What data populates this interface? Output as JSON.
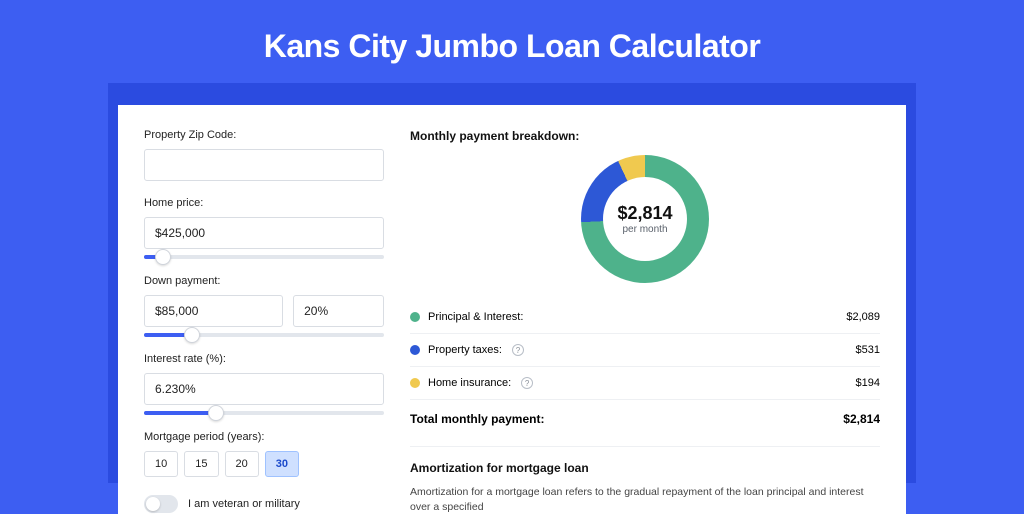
{
  "title": "Kans City Jumbo Loan Calculator",
  "colors": {
    "page_bg": "#3d5ef2",
    "band_bg": "#2b4be0",
    "panel_bg": "#ffffff",
    "slider_fill": "#3d5ef2",
    "period_active_bg": "#cfe0ff"
  },
  "form": {
    "zip": {
      "label": "Property Zip Code:",
      "value": ""
    },
    "home_price": {
      "label": "Home price:",
      "value": "$425,000",
      "slider_pct": 8
    },
    "down_payment": {
      "label": "Down payment:",
      "amount": "$85,000",
      "pct": "20%",
      "slider_pct": 20
    },
    "interest": {
      "label": "Interest rate (%):",
      "value": "6.230%",
      "slider_pct": 30
    },
    "period": {
      "label": "Mortgage period (years):",
      "options": [
        "10",
        "15",
        "20",
        "30"
      ],
      "selected": "30"
    },
    "veteran": {
      "label": "I am veteran or military",
      "on": false
    }
  },
  "breakdown": {
    "title": "Monthly payment breakdown:",
    "donut": {
      "value": "$2,814",
      "sub": "per month",
      "slices": [
        {
          "color": "#4eb28b",
          "pct": 74.2
        },
        {
          "color": "#2d58d6",
          "pct": 18.9
        },
        {
          "color": "#f0c94f",
          "pct": 6.9
        }
      ],
      "thickness_pct": 17
    },
    "rows": [
      {
        "dot": "#4eb28b",
        "label": "Principal & Interest:",
        "info": false,
        "value": "$2,089"
      },
      {
        "dot": "#2d58d6",
        "label": "Property taxes:",
        "info": true,
        "value": "$531"
      },
      {
        "dot": "#f0c94f",
        "label": "Home insurance:",
        "info": true,
        "value": "$194"
      }
    ],
    "total": {
      "label": "Total monthly payment:",
      "value": "$2,814"
    }
  },
  "amort": {
    "title": "Amortization for mortgage loan",
    "text": "Amortization for a mortgage loan refers to the gradual repayment of the loan principal and interest over a specified"
  }
}
